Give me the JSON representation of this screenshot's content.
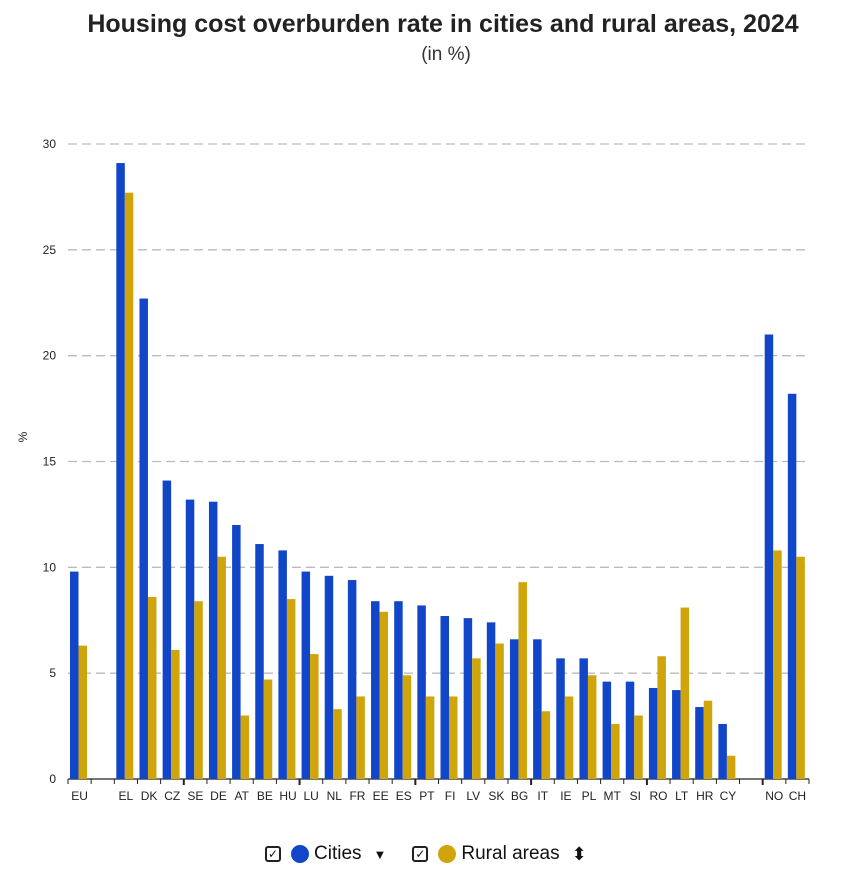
{
  "chart_data": {
    "type": "bar",
    "title": "Housing cost overburden rate in cities and rural areas, 2024",
    "subtitle": "(in %)",
    "xlabel": "",
    "ylabel": "%",
    "ylim": [
      0,
      30
    ],
    "yticks": [
      0,
      5,
      10,
      15,
      20,
      25,
      30
    ],
    "grid": true,
    "legend_placement": "bottom-center",
    "categories": [
      "EU",
      "EL",
      "DK",
      "CZ",
      "SE",
      "DE",
      "AT",
      "BE",
      "HU",
      "LU",
      "NL",
      "FR",
      "EE",
      "ES",
      "PT",
      "FI",
      "LV",
      "SK",
      "BG",
      "IT",
      "IE",
      "PL",
      "MT",
      "SI",
      "RO",
      "LT",
      "HR",
      "CY",
      "NO",
      "CH"
    ],
    "series": [
      {
        "name": "Cities",
        "color": "#1146c8",
        "values": [
          9.8,
          29.1,
          22.7,
          14.1,
          13.2,
          13.1,
          12.0,
          11.1,
          10.8,
          9.8,
          9.6,
          9.4,
          8.4,
          8.4,
          8.2,
          7.7,
          7.6,
          7.4,
          6.6,
          6.6,
          5.7,
          5.7,
          4.6,
          4.6,
          4.3,
          4.2,
          3.4,
          2.6,
          21.0,
          18.2
        ]
      },
      {
        "name": "Rural areas",
        "color": "#d0a50c",
        "values": [
          6.3,
          27.7,
          8.6,
          6.1,
          8.4,
          10.5,
          3.0,
          4.7,
          8.5,
          5.9,
          3.3,
          3.9,
          7.9,
          4.9,
          3.9,
          3.9,
          5.7,
          6.4,
          9.3,
          3.2,
          3.9,
          4.9,
          2.6,
          3.0,
          5.8,
          8.1,
          3.7,
          1.1,
          10.8,
          10.5
        ]
      }
    ]
  },
  "legend": {
    "cities": "Cities",
    "rural": "Rural areas",
    "check": "✓",
    "sort_desc": "▼",
    "sort_both": "⬍"
  }
}
